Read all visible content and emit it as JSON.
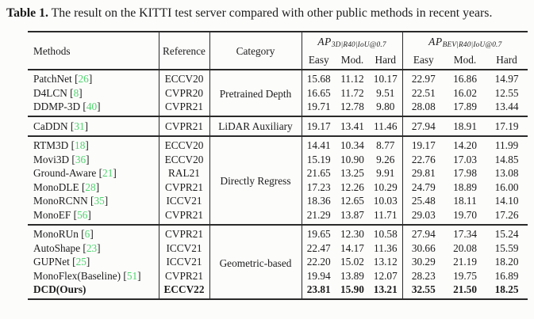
{
  "caption": {
    "label": "Table 1.",
    "text": " The result on the KITTI test server compared with other public methods in recent years."
  },
  "colors": {
    "citation": "#4fd46e",
    "ink": "#1c1c1c",
    "rule": "#2a2a2a",
    "background": "#fcfcfb"
  },
  "table": {
    "headers": {
      "methods": "Methods",
      "reference": "Reference",
      "category": "Category",
      "ap3d": {
        "name": "AP",
        "sub": "3D|R40|IoU@0.7"
      },
      "apbev": {
        "name": "AP",
        "sub": "BEV|R40|IoU@0.7"
      },
      "easy": "Easy",
      "mod": "Mod.",
      "hard": "Hard"
    },
    "groups": [
      {
        "category": "Pretrained Depth",
        "rows": [
          {
            "method": "PatchNet",
            "cite": "26",
            "reference": "ECCV20",
            "ap3d": [
              "15.68",
              "11.12",
              "10.17"
            ],
            "apbev": [
              "22.97",
              "16.86",
              "14.97"
            ]
          },
          {
            "method": "D4LCN",
            "cite": "8",
            "reference": "CVPR20",
            "ap3d": [
              "16.65",
              "11.72",
              "9.51"
            ],
            "apbev": [
              "22.51",
              "16.02",
              "12.55"
            ]
          },
          {
            "method": "DDMP-3D",
            "cite": "40",
            "reference": "CVPR21",
            "ap3d": [
              "19.71",
              "12.78",
              "9.80"
            ],
            "apbev": [
              "28.08",
              "17.89",
              "13.44"
            ]
          }
        ]
      },
      {
        "category": "LiDAR Auxiliary",
        "rows": [
          {
            "method": "CaDDN",
            "cite": "31",
            "reference": "CVPR21",
            "ap3d": [
              "19.17",
              "13.41",
              "11.46"
            ],
            "apbev": [
              "27.94",
              "18.91",
              "17.19"
            ]
          }
        ]
      },
      {
        "category": "Directly Regress",
        "rows": [
          {
            "method": "RTM3D",
            "cite": "18",
            "reference": "ECCV20",
            "ap3d": [
              "14.41",
              "10.34",
              "8.77"
            ],
            "apbev": [
              "19.17",
              "14.20",
              "11.99"
            ]
          },
          {
            "method": "Movi3D",
            "cite": "36",
            "reference": "ECCV20",
            "ap3d": [
              "15.19",
              "10.90",
              "9.26"
            ],
            "apbev": [
              "22.76",
              "17.03",
              "14.85"
            ]
          },
          {
            "method": "Ground-Aware",
            "cite": "21",
            "reference": "RAL21",
            "ap3d": [
              "21.65",
              "13.25",
              "9.91"
            ],
            "apbev": [
              "29.81",
              "17.98",
              "13.08"
            ]
          },
          {
            "method": "MonoDLE",
            "cite": "28",
            "reference": "CVPR21",
            "ap3d": [
              "17.23",
              "12.26",
              "10.29"
            ],
            "apbev": [
              "24.79",
              "18.89",
              "16.00"
            ]
          },
          {
            "method": "MonoRCNN",
            "cite": "35",
            "reference": "ICCV21",
            "ap3d": [
              "18.36",
              "12.65",
              "10.03"
            ],
            "apbev": [
              "25.48",
              "18.11",
              "14.10"
            ]
          },
          {
            "method": "MonoEF",
            "cite": "56",
            "reference": "CVPR21",
            "ap3d": [
              "21.29",
              "13.87",
              "11.71"
            ],
            "apbev": [
              "29.03",
              "19.70",
              "17.26"
            ]
          }
        ]
      },
      {
        "category": "Geometric-based",
        "rows": [
          {
            "method": "MonoRUn",
            "cite": "6",
            "reference": "CVPR21",
            "ap3d": [
              "19.65",
              "12.30",
              "10.58"
            ],
            "apbev": [
              "27.94",
              "17.34",
              "15.24"
            ]
          },
          {
            "method": "AutoShape",
            "cite": "23",
            "reference": "ICCV21",
            "ap3d": [
              "22.47",
              "14.17",
              "11.36"
            ],
            "apbev": [
              "30.66",
              "20.08",
              "15.59"
            ]
          },
          {
            "method": "GUPNet",
            "cite": "25",
            "reference": "ICCV21",
            "ap3d": [
              "22.20",
              "15.02",
              "13.12"
            ],
            "apbev": [
              "30.29",
              "21.19",
              "18.20"
            ]
          },
          {
            "method": "MonoFlex(Baseline)",
            "cite": "51",
            "reference": "CVPR21",
            "ap3d": [
              "19.94",
              "13.89",
              "12.07"
            ],
            "apbev": [
              "28.23",
              "19.75",
              "16.89"
            ]
          },
          {
            "method": "DCD(Ours)",
            "cite": "",
            "bold": true,
            "reference": "ECCV22",
            "ap3d": [
              "23.81",
              "15.90",
              "13.21"
            ],
            "apbev": [
              "32.55",
              "21.50",
              "18.25"
            ]
          }
        ]
      }
    ]
  }
}
